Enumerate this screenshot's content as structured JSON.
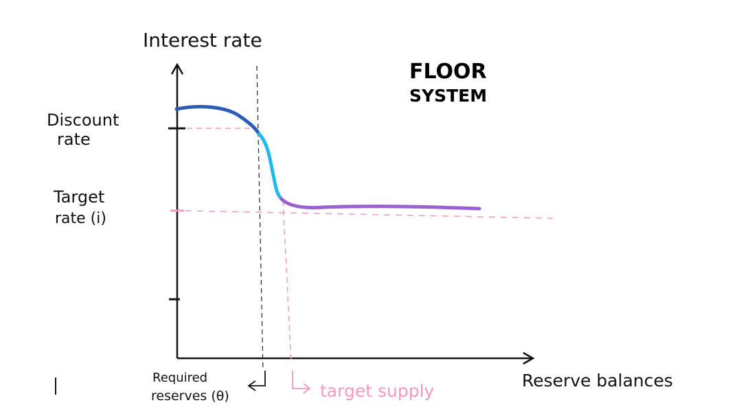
{
  "diagram": {
    "title_line1": "FLOOR",
    "title_line2": "SYSTEM",
    "y_axis_label": "Interest rate",
    "x_axis_label": "Reserve balances",
    "discount_label_line1": "Discount",
    "discount_label_line2": "rate",
    "target_label_line1": "Target",
    "target_label_line2": "rate (i)",
    "required_label_line1": "Required",
    "required_label_line2": "reserves (θ)",
    "supply_label": "target supply"
  },
  "colors": {
    "axis": "#111111",
    "curve_top": "#2b5cb8",
    "curve_mid": "#22b8e8",
    "curve_flat": "#9a62d0",
    "guide_pink": "#f19ac0",
    "guide_black": "#222222"
  }
}
